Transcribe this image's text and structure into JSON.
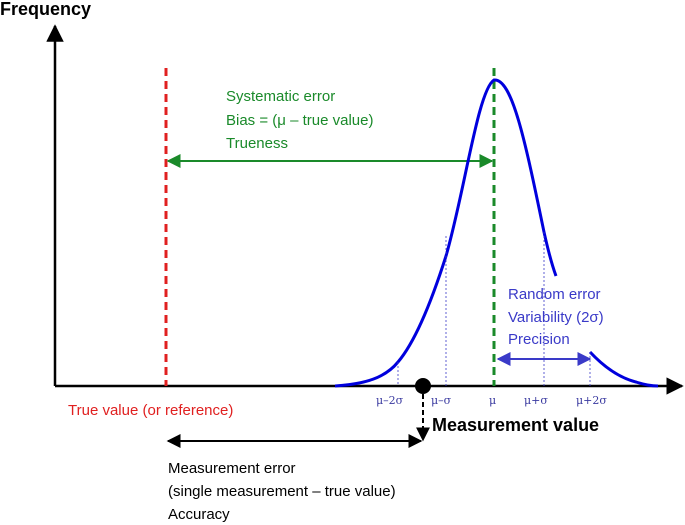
{
  "axes": {
    "y_title": "Frequency",
    "x_title": "Measurement value"
  },
  "true_value_label": "True value (or reference)",
  "systematic": {
    "line1": "Systematic error",
    "line2": "Bias = (μ – true value)",
    "line3": "Trueness"
  },
  "random": {
    "line1": "Random error",
    "line2": "Variability (2σ)",
    "line3": "Precision"
  },
  "measurement_error": {
    "line1": "Measurement error",
    "line2": "(single measurement – true value)",
    "line3": "Accuracy"
  },
  "ticks": {
    "mu_minus_2sigma": "μ–2σ",
    "mu_minus_sigma": "μ–σ",
    "mu": "μ",
    "mu_plus_sigma": "μ+σ",
    "mu_plus_2sigma": "μ+2σ"
  },
  "colors": {
    "true_value": "#e02020",
    "systematic": "#1a8a2a",
    "random": "#3a3ac8",
    "axis": "#000000"
  }
}
